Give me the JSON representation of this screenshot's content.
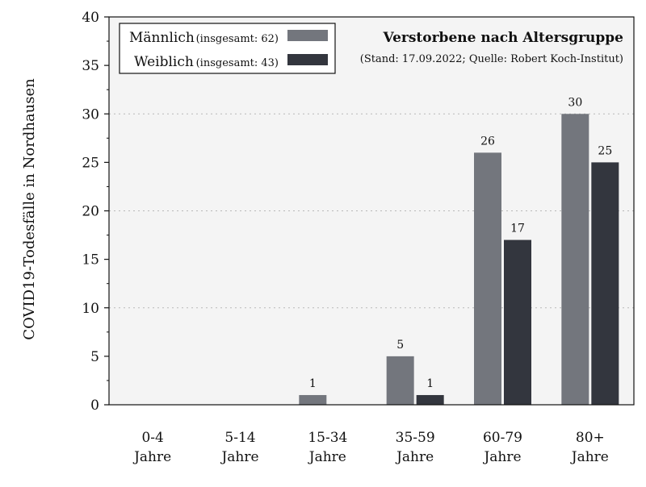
{
  "colors": {
    "male": "#73767d",
    "female": "#33363e",
    "plot_bg": "#f4f4f4",
    "grid": "#b8b8b8"
  },
  "chart_data": {
    "type": "bar",
    "title": "Verstorbene nach Altersgruppe",
    "subtitle": "(Stand: 17.09.2022; Quelle: Robert Koch-Institut)",
    "ylabel": "COVID19-Todesfälle in Nordhausen",
    "xlabel": "",
    "ylim": [
      0,
      40
    ],
    "yticks": [
      0,
      5,
      10,
      15,
      20,
      25,
      30,
      35,
      40
    ],
    "grid": "horizontal dotted",
    "legend_position": "top-left",
    "categories": [
      [
        "0-4",
        "Jahre"
      ],
      [
        "5-14",
        "Jahre"
      ],
      [
        "15-34",
        "Jahre"
      ],
      [
        "35-59",
        "Jahre"
      ],
      [
        "60-79",
        "Jahre"
      ],
      [
        "80+",
        "Jahre"
      ]
    ],
    "series": [
      {
        "name": "Männlich",
        "total_label": "(insgesamt: 62)",
        "color": "#73767d",
        "values": [
          0,
          0,
          1,
          5,
          26,
          30
        ]
      },
      {
        "name": "Weiblich",
        "total_label": "(insgesamt: 43)",
        "color": "#33363e",
        "values": [
          0,
          0,
          0,
          1,
          17,
          25
        ]
      }
    ]
  }
}
